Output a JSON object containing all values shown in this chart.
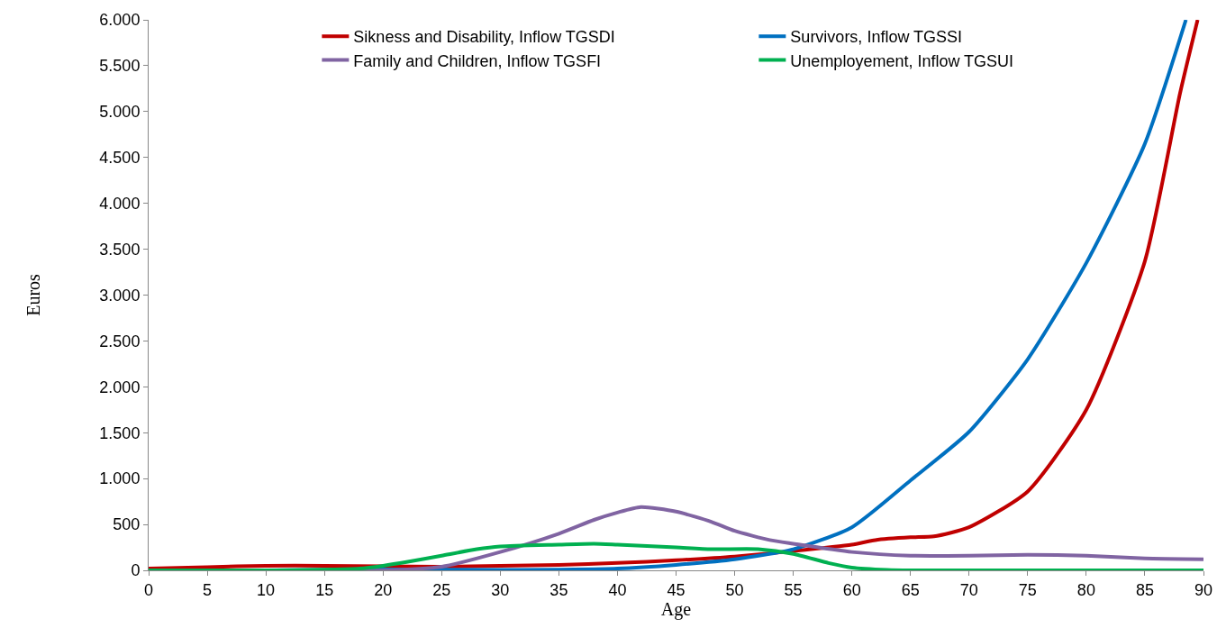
{
  "chart_data": {
    "type": "line",
    "xlabel": "Age",
    "ylabel": "Euros",
    "xlim": [
      0,
      90
    ],
    "xticks": [
      0,
      5,
      10,
      15,
      20,
      25,
      30,
      35,
      40,
      45,
      50,
      55,
      60,
      65,
      70,
      75,
      80,
      85,
      90
    ],
    "ylim": [
      0,
      6000
    ],
    "yticks": [
      0,
      500,
      {
        "value": 1000,
        "label": "1.000"
      },
      {
        "value": 1500,
        "label": "1.500"
      },
      {
        "value": 2000,
        "label": "2.000"
      },
      {
        "value": 2500,
        "label": "2.500"
      },
      {
        "value": 3000,
        "label": "3.000"
      },
      {
        "value": 3500,
        "label": "3.500"
      },
      {
        "value": 4000,
        "label": "4.000"
      },
      {
        "value": 4500,
        "label": "4.500"
      },
      {
        "value": 5000,
        "label": "5.000"
      },
      {
        "value": 5500,
        "label": "5.500"
      },
      {
        "value": 6000,
        "label": "6.000"
      }
    ],
    "grid": false,
    "legend": "top",
    "marker": "none",
    "line_style": "solid",
    "series": [
      {
        "name": "Sikness and Disability, Inflow TGSDI",
        "color": "#c00000",
        "x": [
          0,
          5,
          10,
          15,
          20,
          25,
          30,
          35,
          40,
          45,
          50,
          55,
          60,
          62,
          65,
          67,
          70,
          75,
          80,
          85,
          88,
          89.5
        ],
        "values": [
          20,
          35,
          50,
          50,
          45,
          40,
          50,
          60,
          80,
          110,
          150,
          210,
          280,
          330,
          360,
          370,
          470,
          860,
          1750,
          3370,
          5200,
          6000
        ]
      },
      {
        "name": "Survivors, Inflow TGSSI",
        "color": "#0070c0",
        "x": [
          0,
          10,
          20,
          30,
          40,
          45,
          50,
          55,
          60,
          65,
          70,
          75,
          80,
          85,
          88.5
        ],
        "values": [
          0,
          0,
          10,
          5,
          20,
          60,
          120,
          230,
          470,
          980,
          1510,
          2300,
          3350,
          4650,
          6000
        ]
      },
      {
        "name": "Family and Children, Inflow TGSFI",
        "color": "#8064a2",
        "x": [
          0,
          10,
          20,
          25,
          30,
          35,
          38,
          40,
          42,
          45,
          48,
          50,
          53,
          55,
          60,
          65,
          70,
          75,
          80,
          85,
          90
        ],
        "values": [
          0,
          0,
          0,
          40,
          200,
          400,
          550,
          630,
          690,
          640,
          530,
          430,
          330,
          290,
          200,
          160,
          160,
          170,
          160,
          130,
          120
        ]
      },
      {
        "name": "Unemployement, Inflow TGSUI",
        "color": "#00b050",
        "x": [
          0,
          10,
          18,
          20,
          22,
          25,
          28,
          30,
          35,
          38,
          40,
          45,
          48,
          52,
          55,
          58,
          60,
          63,
          65,
          70,
          80,
          90
        ],
        "values": [
          0,
          0,
          20,
          50,
          90,
          160,
          230,
          260,
          280,
          290,
          280,
          250,
          230,
          230,
          180,
          80,
          30,
          5,
          0,
          0,
          0,
          0
        ]
      }
    ]
  }
}
